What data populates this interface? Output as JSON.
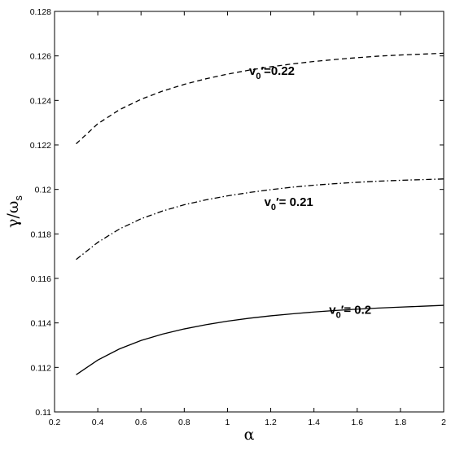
{
  "chart_data": {
    "type": "line",
    "xlabel": "α",
    "ylabel": "γ/ω_s",
    "ylabel_main": "γ/ω",
    "ylabel_sub": "s",
    "xlim": [
      0.2,
      2
    ],
    "ylim": [
      0.11,
      0.128
    ],
    "grid": false,
    "x_ticks": [
      "0.2",
      "0.4",
      "0.6",
      "0.8",
      "1",
      "1.2",
      "1.4",
      "1.6",
      "1.8",
      "2"
    ],
    "y_ticks": [
      "0.11",
      "0.112",
      "0.114",
      "0.116",
      "0.118",
      "0.12",
      "0.122",
      "0.124",
      "0.126",
      "0.128"
    ],
    "x_tick_values": [
      0.2,
      0.4,
      0.6,
      0.8,
      1.0,
      1.2,
      1.4,
      1.6,
      1.8,
      2.0
    ],
    "y_tick_values": [
      0.11,
      0.112,
      0.114,
      0.116,
      0.118,
      0.12,
      0.122,
      0.124,
      0.126,
      0.128
    ],
    "x": [
      0.3,
      0.4,
      0.5,
      0.6,
      0.7,
      0.8,
      0.9,
      1.0,
      1.1,
      1.2,
      1.3,
      1.4,
      1.5,
      1.6,
      1.7,
      1.8,
      1.9,
      2.0
    ],
    "series": [
      {
        "name": "v0′=0.22",
        "label_main": "v",
        "label_sub": "0",
        "label_rest": "′=0.22",
        "label_anchor": [
          1.1,
          0.12515
        ],
        "dash": "dashed",
        "values": [
          0.12205,
          0.12295,
          0.12358,
          0.12405,
          0.12442,
          0.12472,
          0.12497,
          0.12518,
          0.12536,
          0.12551,
          0.12564,
          0.12575,
          0.12584,
          0.12592,
          0.12599,
          0.12604,
          0.12608,
          0.12612
        ]
      },
      {
        "name": "v0′= 0.21",
        "label_main": "v",
        "label_sub": "0",
        "label_rest": "′= 0.21",
        "label_anchor": [
          1.17,
          0.11925
        ],
        "dash": "dashdot",
        "values": [
          0.11685,
          0.11762,
          0.11822,
          0.11868,
          0.11903,
          0.11931,
          0.11953,
          0.11971,
          0.11986,
          0.11999,
          0.1201,
          0.12019,
          0.12026,
          0.12032,
          0.12037,
          0.12041,
          0.12044,
          0.12047
        ]
      },
      {
        "name": "v0′= 0.2",
        "label_main": "v",
        "label_sub": "0",
        "label_rest": "′= 0.2",
        "label_anchor": [
          1.47,
          0.1144
        ],
        "dash": "solid",
        "values": [
          0.11167,
          0.11233,
          0.11283,
          0.11321,
          0.1135,
          0.11373,
          0.11392,
          0.11408,
          0.11421,
          0.11432,
          0.11441,
          0.11449,
          0.11456,
          0.11462,
          0.11467,
          0.11471,
          0.11475,
          0.11479
        ]
      }
    ]
  }
}
